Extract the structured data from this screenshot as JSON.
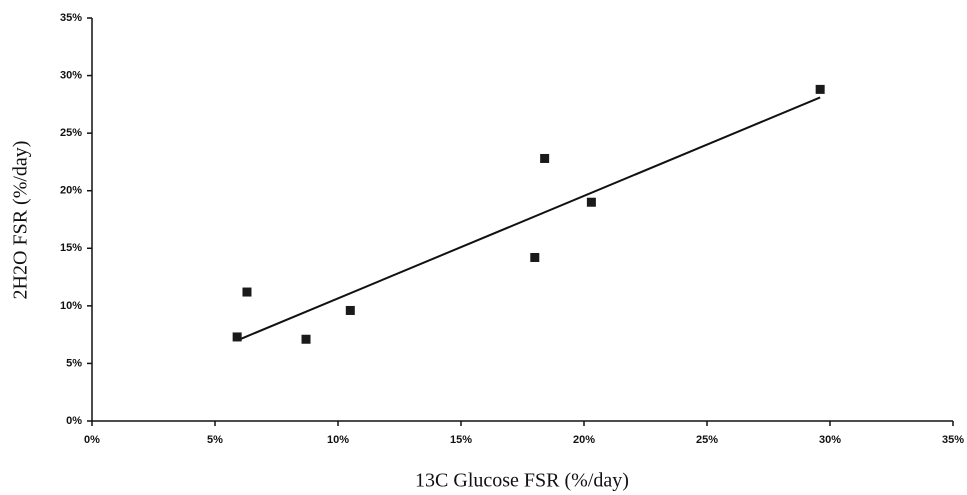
{
  "chart_data": {
    "type": "scatter",
    "x_label": "13C Glucose FSR (%/day)",
    "y_label": "2H2O FSR (%/day)",
    "x": [
      5.9,
      6.3,
      8.7,
      10.5,
      18.0,
      18.4,
      20.3,
      29.6
    ],
    "values": [
      7.3,
      11.2,
      7.1,
      9.6,
      14.2,
      22.8,
      19.0,
      28.8
    ],
    "color": "#1a1a1a",
    "trendline": {
      "x": [
        5.9,
        29.6
      ],
      "values": [
        7.0,
        28.1
      ]
    },
    "xlim": [
      0,
      35
    ],
    "ylim": [
      0,
      35
    ],
    "xticks": [
      {
        "value": 0,
        "label": "0%"
      },
      {
        "value": 5,
        "label": "5%"
      },
      {
        "value": 10,
        "label": "10%"
      },
      {
        "value": 15,
        "label": "15%"
      },
      {
        "value": 20,
        "label": "20%"
      },
      {
        "value": 25,
        "label": "25%"
      },
      {
        "value": 30,
        "label": "30%"
      },
      {
        "value": 35,
        "label": "35%"
      }
    ],
    "yticks": [
      {
        "value": 0,
        "label": "0%"
      },
      {
        "value": 5,
        "label": "5%"
      },
      {
        "value": 10,
        "label": "10%"
      },
      {
        "value": 15,
        "label": "15%"
      },
      {
        "value": 20,
        "label": "20%"
      },
      {
        "value": 25,
        "label": "25%"
      },
      {
        "value": 30,
        "label": "30%"
      },
      {
        "value": 35,
        "label": "35%"
      }
    ],
    "grid": false
  }
}
